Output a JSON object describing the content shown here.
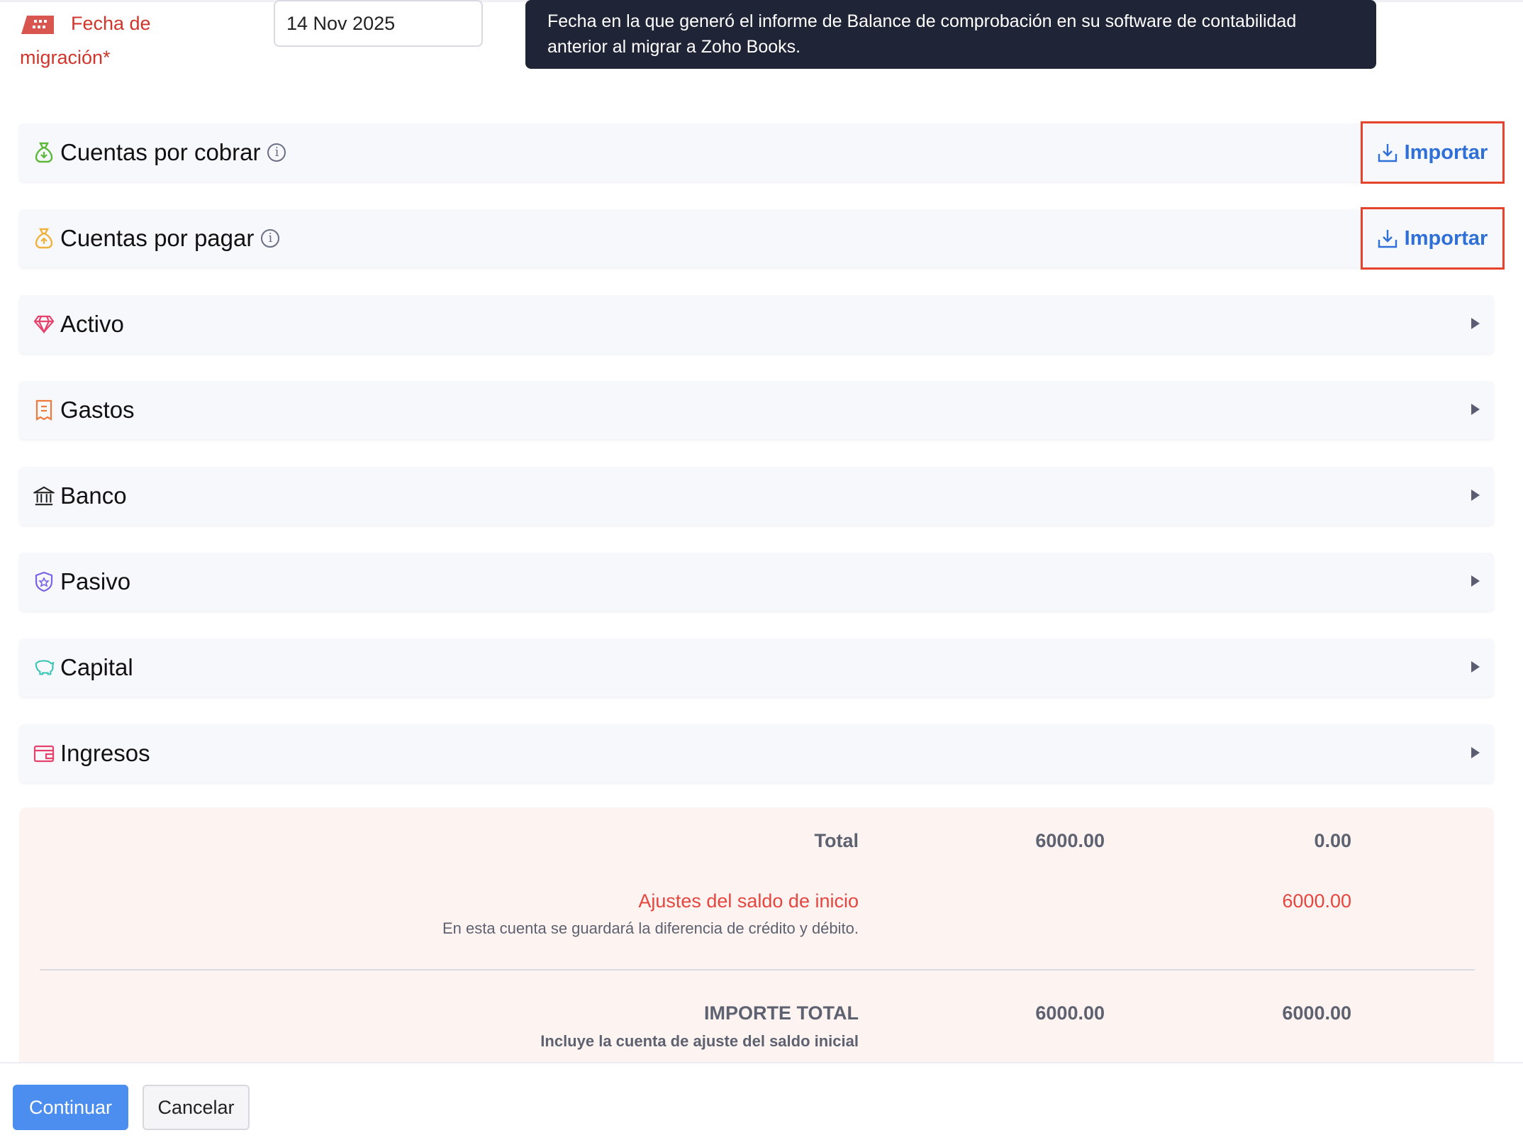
{
  "migration": {
    "label_line1": "Fecha de",
    "label_line2": "migración*",
    "date_value": "14 Nov 2025",
    "tooltip": "Fecha en la que generó el informe de Balance de comprobación en su software de contabilidad anterior al migrar a Zoho Books."
  },
  "sections": [
    {
      "label": "Cuentas por cobrar",
      "icon": "money-bag-down-icon",
      "color": "#5cb83a",
      "action": "Importar"
    },
    {
      "label": "Cuentas por pagar",
      "icon": "money-bag-up-icon",
      "color": "#f0b23e",
      "action": "Importar"
    },
    {
      "label": "Activo",
      "icon": "diamond-icon",
      "color": "#e5436e"
    },
    {
      "label": "Gastos",
      "icon": "receipt-icon",
      "color": "#ef7a3d"
    },
    {
      "label": "Banco",
      "icon": "bank-icon",
      "color": "#222222"
    },
    {
      "label": "Pasivo",
      "icon": "shield-icon",
      "color": "#7b63e8"
    },
    {
      "label": "Capital",
      "icon": "piggy-bank-icon",
      "color": "#35c4b5"
    },
    {
      "label": "Ingresos",
      "icon": "wallet-icon",
      "color": "#e5436e"
    }
  ],
  "summary": {
    "total_label": "Total",
    "total_debit": "6000.00",
    "total_credit": "0.00",
    "adjust_label": "Ajustes del saldo de inicio",
    "adjust_note": "En esta cuenta se guardará la diferencia de crédito y débito.",
    "adjust_credit": "6000.00",
    "grand_label": "IMPORTE TOTAL",
    "grand_note": "Incluye la cuenta de ajuste del saldo inicial",
    "grand_debit": "6000.00",
    "grand_credit": "6000.00"
  },
  "footer": {
    "continue": "Continuar",
    "cancel": "Cancelar"
  }
}
